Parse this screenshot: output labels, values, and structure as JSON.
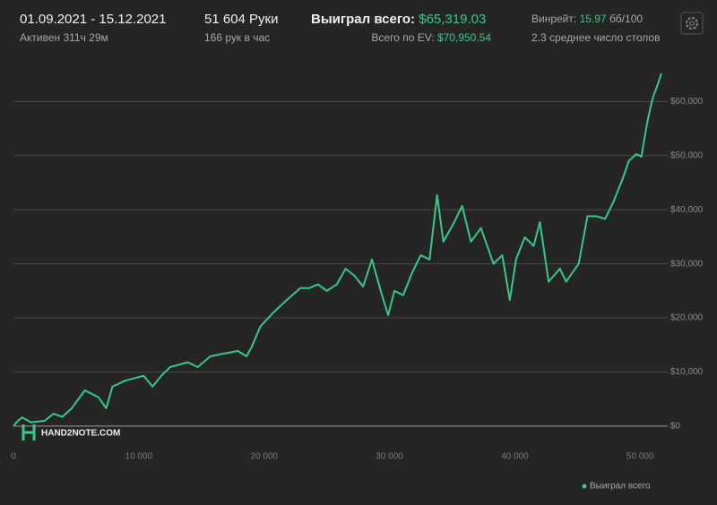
{
  "header": {
    "date_range": "01.09.2021 - 15.12.2021",
    "active": "Активен 311ч 29м",
    "hands": "51 604 Руки",
    "hands_per_hour": "166 рук в час",
    "won_label": "Выиграл всего:",
    "won_value": "$65,319.03",
    "ev_label": "Всего по EV:",
    "ev_value": "$70,950.54",
    "winrate_label": "Винрейт:",
    "winrate_value": "15.97",
    "winrate_unit": "бб/100",
    "tables": "2.3 среднее число столов"
  },
  "watermark": "HAND2NOTE.COM",
  "chart_data": {
    "type": "line",
    "xlim": [
      0,
      52200
    ],
    "xticks": [
      0,
      {
        "value": 10000,
        "label": "10 000"
      },
      {
        "value": 20000,
        "label": "20 000"
      },
      {
        "value": 30000,
        "label": "30 000"
      },
      {
        "value": 40000,
        "label": "40 000"
      },
      {
        "value": 50000,
        "label": "50 000"
      }
    ],
    "ylim": [
      -2000,
      68000
    ],
    "yticks": [
      {
        "value": 0,
        "label": "$0"
      },
      {
        "value": 10000,
        "label": "$10,000"
      },
      {
        "value": 20000,
        "label": "$20,000"
      },
      {
        "value": 30000,
        "label": "$30,000"
      },
      {
        "value": 40000,
        "label": "$40,000"
      },
      {
        "value": 50000,
        "label": "$50,000"
      },
      {
        "value": 60000,
        "label": "$60,000"
      }
    ],
    "grid": true,
    "legend": "bottom-right",
    "x": [
      0,
      360,
      700,
      1400,
      2500,
      3200,
      3900,
      4650,
      5700,
      6800,
      7400,
      7900,
      8900,
      10400,
      11100,
      11800,
      12500,
      13900,
      14700,
      15700,
      16800,
      17900,
      18600,
      19000,
      19700,
      20700,
      21800,
      22900,
      23600,
      24300,
      25000,
      25800,
      26500,
      27200,
      27900,
      28600,
      29300,
      29900,
      30400,
      31100,
      31800,
      32500,
      33200,
      33800,
      34300,
      35100,
      35800,
      36500,
      37300,
      38300,
      39000,
      39600,
      40100,
      40800,
      41500,
      42000,
      42700,
      43600,
      44100,
      45100,
      45800,
      46500,
      47200,
      47900,
      48600,
      49100,
      49700,
      50100,
      50600,
      51000,
      51400,
      51700
    ],
    "series": [
      {
        "name": "Выиграл всего",
        "color": "#35c98a",
        "values": [
          0,
          1000,
          1600,
          700,
          1000,
          2300,
          1700,
          3300,
          6600,
          5300,
          3300,
          7300,
          8400,
          9300,
          7300,
          9300,
          10900,
          11800,
          10900,
          12900,
          13400,
          13900,
          12900,
          14600,
          18400,
          20900,
          23300,
          25500,
          25500,
          26200,
          25000,
          26200,
          29100,
          27800,
          25800,
          30800,
          25000,
          20500,
          25000,
          24200,
          28300,
          31600,
          30800,
          42700,
          34100,
          37400,
          40700,
          34100,
          36600,
          30000,
          31600,
          23300,
          30800,
          34900,
          33300,
          37700,
          26700,
          29100,
          26700,
          30000,
          38800,
          38800,
          38300,
          41600,
          45700,
          49000,
          50300,
          49800,
          56500,
          60600,
          63100,
          65200
        ]
      }
    ]
  }
}
